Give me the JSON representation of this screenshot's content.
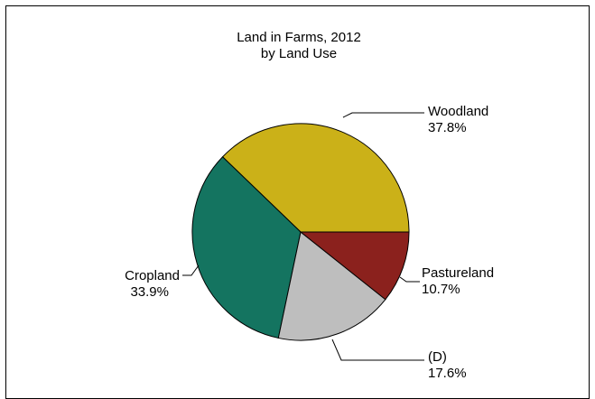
{
  "chart_data": {
    "type": "pie",
    "title": "Land in Farms, 2012",
    "subtitle": "by Land Use",
    "slices": [
      {
        "label": "Woodland",
        "value": 37.8,
        "value_text": "37.8%",
        "color": "#cbb118"
      },
      {
        "label": "Pastureland",
        "value": 10.7,
        "value_text": "10.7%",
        "color": "#8b211d"
      },
      {
        "label": "(D)",
        "value": 17.6,
        "value_text": "17.6%",
        "color": "#bebebe"
      },
      {
        "label": "Cropland",
        "value": 33.9,
        "value_text": "33.9%",
        "color": "#147460"
      }
    ]
  }
}
